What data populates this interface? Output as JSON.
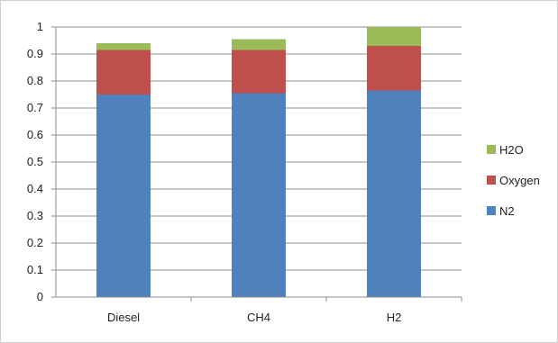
{
  "chart_data": {
    "type": "bar",
    "stacked": true,
    "categories": [
      "Diesel",
      "CH4",
      "H2"
    ],
    "series": [
      {
        "name": "N2",
        "values": [
          0.75,
          0.755,
          0.765
        ],
        "color": "#4f81bd"
      },
      {
        "name": "Oxygen",
        "values": [
          0.165,
          0.16,
          0.165
        ],
        "color": "#c0504d"
      },
      {
        "name": "H2O",
        "values": [
          0.025,
          0.04,
          0.07
        ],
        "color": "#9bbb59"
      }
    ],
    "ylim": [
      0,
      1
    ],
    "yticks": [
      "0",
      "0.1",
      "0.2",
      "0.3",
      "0.4",
      "0.5",
      "0.6",
      "0.7",
      "0.8",
      "0.9",
      "1"
    ],
    "grid": true,
    "legend": {
      "position": "right",
      "order": [
        "H2O",
        "Oxygen",
        "N2"
      ]
    }
  }
}
